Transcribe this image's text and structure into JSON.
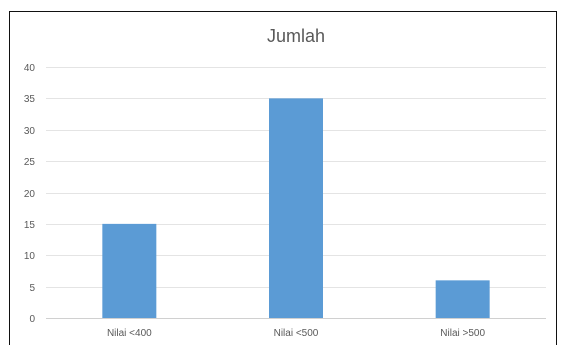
{
  "chart_data": {
    "type": "bar",
    "title": "Jumlah",
    "categories": [
      "Nilai <400",
      "Nilai <500",
      "Nilai >500"
    ],
    "series": [
      {
        "values": [
          15,
          35,
          6
        ]
      }
    ],
    "xlabel": "",
    "ylabel": "",
    "ylim": [
      0,
      40
    ],
    "yticks": [
      0,
      5,
      10,
      15,
      20,
      25,
      30,
      35,
      40
    ],
    "grid": true,
    "legend": "none",
    "colors": {
      "bar": "#5B9BD5",
      "grid": "#E4E4E4",
      "axis": "#D0D0D0",
      "text": "#595959"
    }
  }
}
